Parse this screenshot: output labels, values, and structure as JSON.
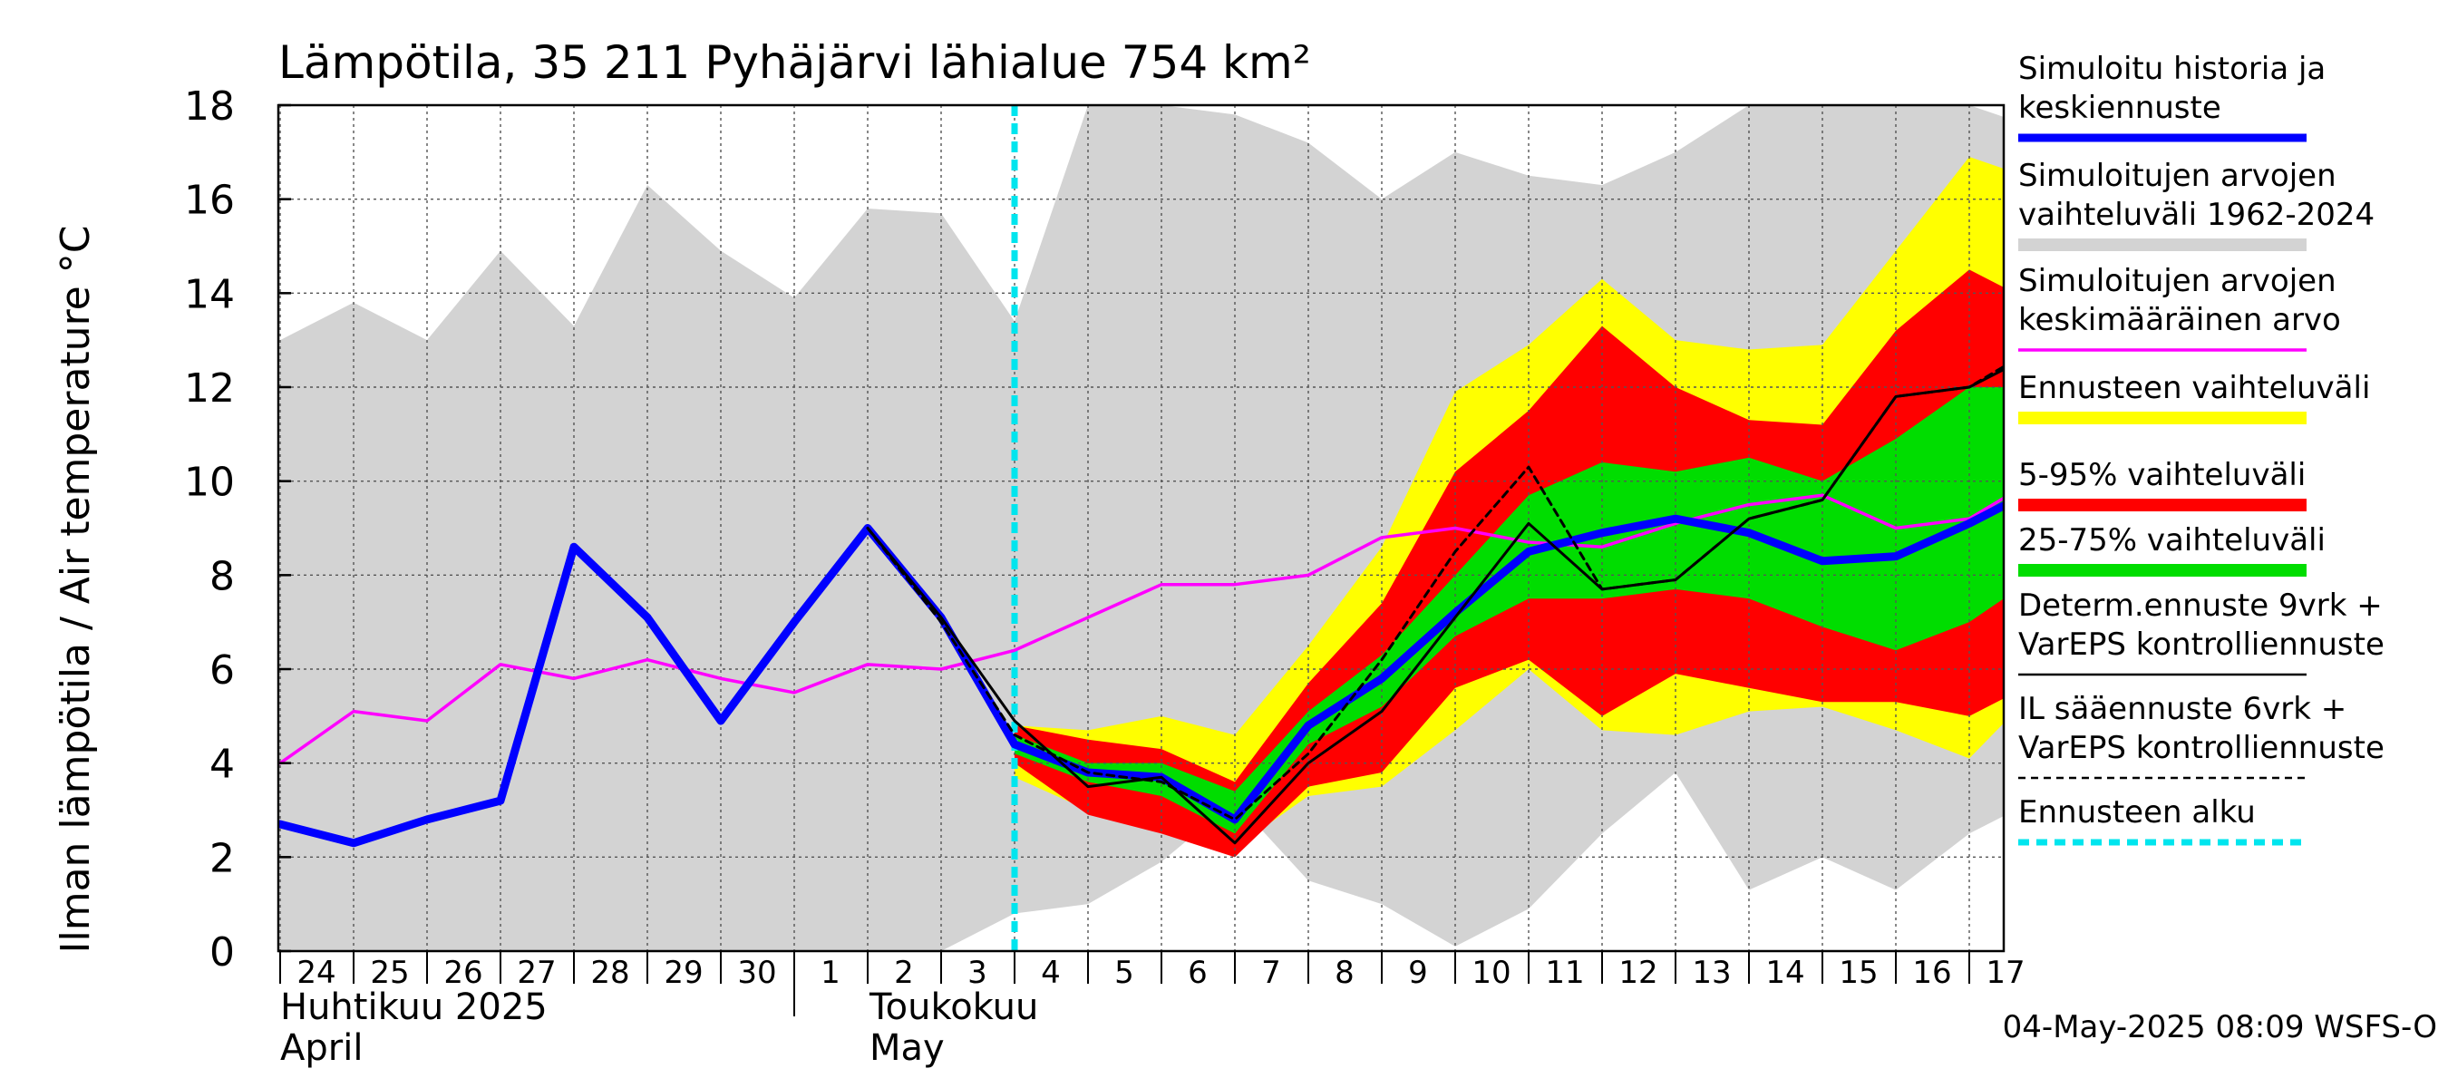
{
  "chart_data": {
    "type": "line",
    "title": "Lämpötila, 35 211 Pyhäjärvi lähialue 754 km²",
    "ylabel": "Ilman lämpötila / Air temperature    °C",
    "ylim": [
      0,
      18
    ],
    "yticks": [
      "0",
      "2",
      "4",
      "6",
      "8",
      "10",
      "12",
      "14",
      "16",
      "18"
    ],
    "grid": true,
    "legend_position": "right",
    "x_start": "2025-04-24",
    "x_end": "2025-05-17",
    "x_tick_labels": [
      "24",
      "25",
      "26",
      "27",
      "28",
      "29",
      "30",
      "1",
      "2",
      "3",
      "4",
      "5",
      "6",
      "7",
      "8",
      "9",
      "10",
      "11",
      "12",
      "13",
      "14",
      "15",
      "16",
      "17"
    ],
    "month_labels": [
      {
        "fi": "Huhtikuu  2025",
        "en": "April"
      },
      {
        "fi": "Toukokuu",
        "en": "May"
      }
    ],
    "forecast_start": "2025-05-04",
    "timestamp": "04-May-2025 08:09 WSFS-O",
    "bands": {
      "history_range": {
        "color": "#d3d3d3",
        "x": [
          "2025-04-24",
          "2025-04-25",
          "2025-04-26",
          "2025-04-27",
          "2025-04-28",
          "2025-04-29",
          "2025-04-30",
          "2025-05-01",
          "2025-05-02",
          "2025-05-03",
          "2025-05-04",
          "2025-05-05",
          "2025-05-06",
          "2025-05-07",
          "2025-05-08",
          "2025-05-09",
          "2025-05-10",
          "2025-05-11",
          "2025-05-12",
          "2025-05-13",
          "2025-05-14",
          "2025-05-15",
          "2025-05-16",
          "2025-05-17",
          "2025-05-17 18:00"
        ],
        "upper": [
          13.0,
          13.8,
          13.0,
          14.9,
          13.3,
          16.3,
          14.9,
          13.9,
          15.8,
          15.7,
          13.4,
          18.0,
          18.0,
          17.8,
          17.2,
          16.0,
          17.0,
          16.5,
          16.3,
          17.0,
          18.0,
          18.0,
          18.0,
          18.0,
          17.6
        ],
        "lower": [
          0,
          0,
          0,
          0,
          0,
          0,
          0,
          0,
          0,
          0,
          0.8,
          1.0,
          1.9,
          3.2,
          1.5,
          1.0,
          0.1,
          0.9,
          2.5,
          3.8,
          1.3,
          2.0,
          1.3,
          2.5,
          3.1
        ]
      },
      "forecast_range": {
        "color": "#ffff00",
        "x": [
          "2025-05-04",
          "2025-05-05",
          "2025-05-06",
          "2025-05-07",
          "2025-05-08",
          "2025-05-09",
          "2025-05-10",
          "2025-05-11",
          "2025-05-12",
          "2025-05-13",
          "2025-05-14",
          "2025-05-15",
          "2025-05-16",
          "2025-05-17",
          "2025-05-17 18:00"
        ],
        "upper": [
          4.8,
          4.7,
          5.0,
          4.6,
          6.5,
          8.6,
          11.9,
          12.9,
          14.3,
          13.0,
          12.8,
          12.9,
          14.9,
          16.9,
          16.5
        ],
        "lower": [
          3.7,
          3.0,
          2.6,
          2.2,
          3.3,
          3.5,
          4.7,
          6.0,
          4.7,
          4.6,
          5.1,
          5.2,
          4.7,
          4.1,
          5.3
        ]
      },
      "p5_95": {
        "color": "#ff0000",
        "x": [
          "2025-05-04",
          "2025-05-05",
          "2025-05-06",
          "2025-05-07",
          "2025-05-08",
          "2025-05-09",
          "2025-05-10",
          "2025-05-11",
          "2025-05-12",
          "2025-05-13",
          "2025-05-14",
          "2025-05-15",
          "2025-05-16",
          "2025-05-17",
          "2025-05-17 18:00"
        ],
        "upper": [
          4.8,
          4.5,
          4.3,
          3.6,
          5.7,
          7.4,
          10.2,
          11.5,
          13.3,
          12.0,
          11.3,
          11.2,
          13.2,
          14.5,
          13.9
        ],
        "lower": [
          4.0,
          2.9,
          2.5,
          2.0,
          3.5,
          3.8,
          5.6,
          6.2,
          5.0,
          5.9,
          5.6,
          5.3,
          5.3,
          5.0,
          5.6
        ]
      },
      "p25_75": {
        "color": "#00dd00",
        "x": [
          "2025-05-04",
          "2025-05-05",
          "2025-05-06",
          "2025-05-07",
          "2025-05-08",
          "2025-05-09",
          "2025-05-10",
          "2025-05-11",
          "2025-05-12",
          "2025-05-13",
          "2025-05-14",
          "2025-05-15",
          "2025-05-16",
          "2025-05-17",
          "2025-05-17 18:00"
        ],
        "upper": [
          4.6,
          4.0,
          4.0,
          3.4,
          5.1,
          6.3,
          8.0,
          9.7,
          10.4,
          10.2,
          10.5,
          10.0,
          10.9,
          12.0,
          12.0
        ],
        "lower": [
          4.2,
          3.6,
          3.3,
          2.5,
          4.4,
          5.2,
          6.7,
          7.5,
          7.5,
          7.7,
          7.5,
          6.9,
          6.4,
          7.0,
          7.8
        ]
      }
    },
    "series": [
      {
        "name": "Simuloitujen arvojen keskimääräinen arvo",
        "color": "#ff00ff",
        "x": [
          "2025-04-24",
          "2025-04-25",
          "2025-04-26",
          "2025-04-27",
          "2025-04-28",
          "2025-04-29",
          "2025-04-30",
          "2025-05-01",
          "2025-05-02",
          "2025-05-03",
          "2025-05-04",
          "2025-05-05",
          "2025-05-06",
          "2025-05-07",
          "2025-05-08",
          "2025-05-09",
          "2025-05-10",
          "2025-05-11",
          "2025-05-12",
          "2025-05-13",
          "2025-05-14",
          "2025-05-15",
          "2025-05-16",
          "2025-05-17",
          "2025-05-17 18:00"
        ],
        "values": [
          4.0,
          5.1,
          4.9,
          6.1,
          5.8,
          6.2,
          5.8,
          5.5,
          6.1,
          6.0,
          6.4,
          7.1,
          7.8,
          7.8,
          8.0,
          8.8,
          9.0,
          8.7,
          8.6,
          9.1,
          9.5,
          9.7,
          9.0,
          9.2,
          9.9
        ]
      },
      {
        "name": "Simuloitu historia ja keskiennuste",
        "color": "#0000ff",
        "x": [
          "2025-04-24",
          "2025-04-25",
          "2025-04-26",
          "2025-04-27",
          "2025-04-28",
          "2025-04-29",
          "2025-04-30",
          "2025-05-01",
          "2025-05-02",
          "2025-05-03",
          "2025-05-04",
          "2025-05-05",
          "2025-05-06",
          "2025-05-07",
          "2025-05-08",
          "2025-05-09",
          "2025-05-10",
          "2025-05-11",
          "2025-05-12",
          "2025-05-13",
          "2025-05-14",
          "2025-05-15",
          "2025-05-16",
          "2025-05-17",
          "2025-05-17 18:00"
        ],
        "values": [
          2.7,
          2.3,
          2.8,
          3.2,
          8.6,
          7.1,
          4.9,
          7.0,
          9.0,
          7.1,
          4.4,
          3.8,
          3.7,
          2.8,
          4.8,
          5.8,
          7.2,
          8.5,
          8.9,
          9.2,
          8.9,
          8.3,
          8.4,
          9.1,
          9.7
        ]
      },
      {
        "name": "Determ.ennuste 9vrk + VarEPS kontrolliennuste",
        "color": "#000000",
        "x": [
          "2025-05-02",
          "2025-05-03",
          "2025-05-04",
          "2025-05-05",
          "2025-05-06",
          "2025-05-07",
          "2025-05-08",
          "2025-05-09",
          "2025-05-10",
          "2025-05-11",
          "2025-05-12",
          "2025-05-13",
          "2025-05-14",
          "2025-05-15",
          "2025-05-16",
          "2025-05-17",
          "2025-05-17 18:00"
        ],
        "values": [
          9.0,
          7.1,
          4.9,
          3.5,
          3.7,
          2.3,
          4.0,
          5.1,
          7.1,
          9.1,
          7.7,
          7.9,
          9.2,
          9.6,
          11.8,
          12.0,
          12.6
        ]
      },
      {
        "name": "IL sääennuste 6vrk + VarEPS kontrolliennuste",
        "color": "#000000",
        "dashed": true,
        "x": [
          "2025-05-02",
          "2025-05-03",
          "2025-05-04",
          "2025-05-05",
          "2025-05-06",
          "2025-05-07",
          "2025-05-08",
          "2025-05-09",
          "2025-05-10",
          "2025-05-11",
          "2025-05-12",
          "2025-05-13",
          "2025-05-14",
          "2025-05-15",
          "2025-05-16",
          "2025-05-17",
          "2025-05-17 18:00"
        ],
        "values": [
          9.0,
          7.0,
          4.6,
          3.8,
          3.6,
          2.8,
          4.2,
          6.2,
          8.5,
          10.3,
          7.7,
          7.9,
          9.2,
          9.6,
          11.8,
          12.0,
          12.7
        ]
      }
    ],
    "legend": [
      {
        "lines": [
          "Simuloitu historia ja",
          "keskiennuste"
        ],
        "color": "#0000ff",
        "kind": "thick"
      },
      {
        "lines": [
          "Simuloitujen arvojen",
          "vaihteluväli 1962-2024"
        ],
        "color": "#d3d3d3",
        "kind": "band"
      },
      {
        "lines": [
          "Simuloitujen arvojen",
          "keskimääräinen arvo"
        ],
        "color": "#ff00ff",
        "kind": "thin"
      },
      {
        "lines": [
          "Ennusteen vaihteluväli"
        ],
        "color": "#ffff00",
        "kind": "band"
      },
      {
        "lines": [
          "5-95% vaihteluväli"
        ],
        "color": "#ff0000",
        "kind": "band"
      },
      {
        "lines": [
          "25-75% vaihteluväli"
        ],
        "color": "#00dd00",
        "kind": "band"
      },
      {
        "lines": [
          "Determ.ennuste 9vrk +",
          "VarEPS kontrolliennuste"
        ],
        "color": "#000000",
        "kind": "line"
      },
      {
        "lines": [
          "IL sääennuste 6vrk  +",
          "  VarEPS kontrolliennuste"
        ],
        "color": "#000000",
        "kind": "dashed"
      },
      {
        "lines": [
          "Ennusteen alku"
        ],
        "color": "#00e5ee",
        "kind": "cyan-dashed"
      }
    ]
  }
}
